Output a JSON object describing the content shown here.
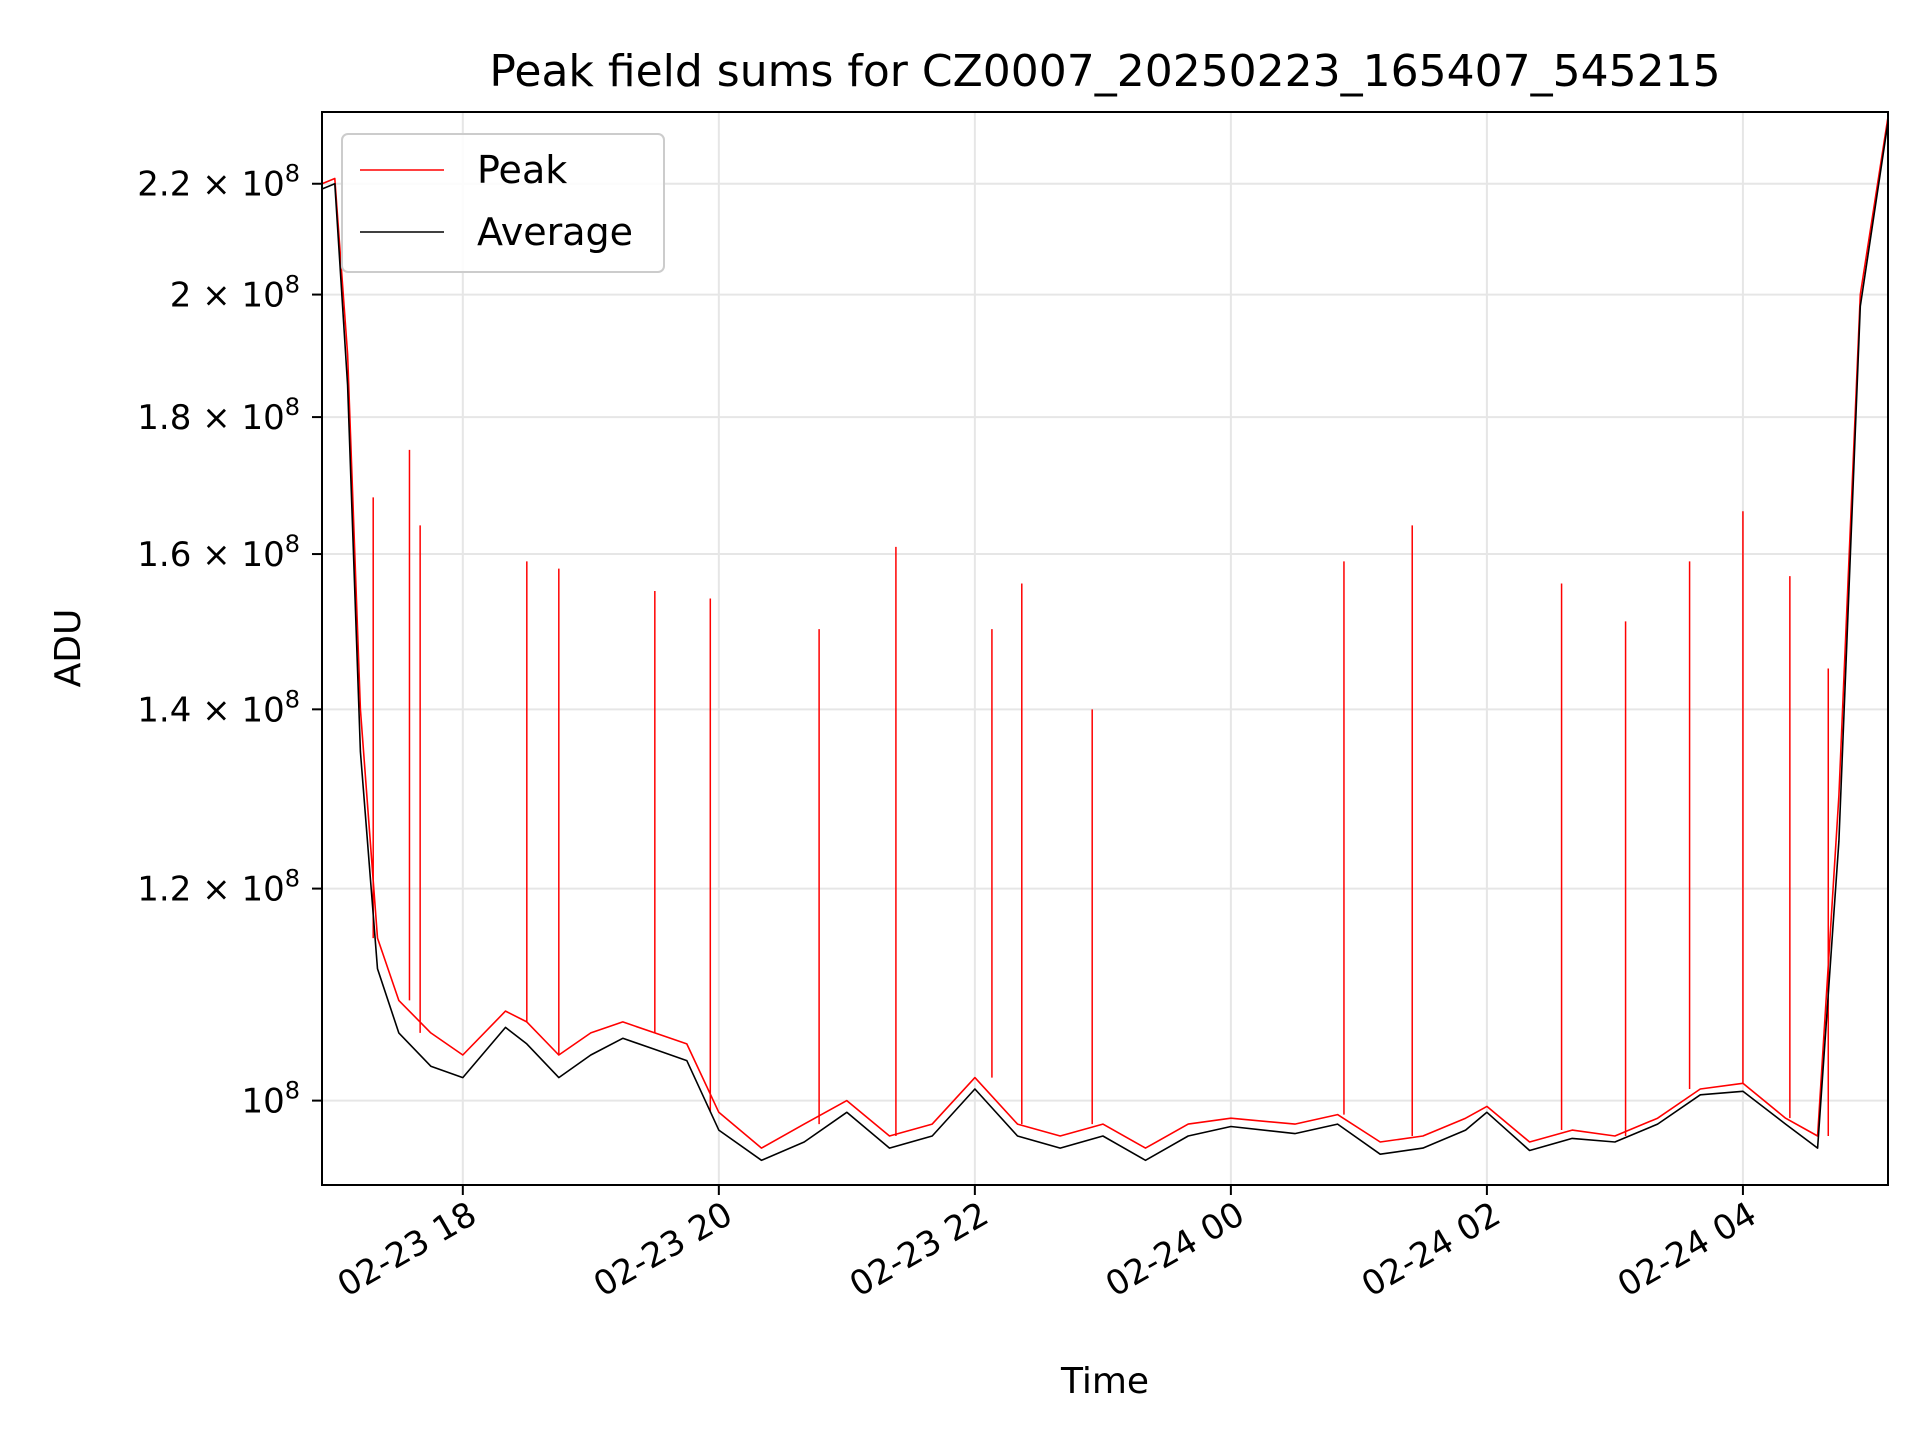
{
  "chart_data": {
    "type": "line",
    "title": "Peak field sums for CZ0007_20250223_165407_545215",
    "xlabel": "Time",
    "ylabel": "ADU",
    "yscale": "log",
    "xlim": [
      "2025-02-23 16:54",
      "2025-02-24 05:08"
    ],
    "ylim": [
      93000000.0,
      234000000.0
    ],
    "grid": true,
    "legend_position": "upper-left",
    "x_ticks": [
      {
        "value": "2025-02-23 18:00",
        "label": "02-23 18"
      },
      {
        "value": "2025-02-23 20:00",
        "label": "02-23 20"
      },
      {
        "value": "2025-02-23 22:00",
        "label": "02-23 22"
      },
      {
        "value": "2025-02-24 00:00",
        "label": "02-24 00"
      },
      {
        "value": "2025-02-24 02:00",
        "label": "02-24 02"
      },
      {
        "value": "2025-02-24 04:00",
        "label": "02-24 04"
      }
    ],
    "y_ticks": [
      {
        "value": 100000000,
        "base": "10",
        "exp": "8"
      },
      {
        "value": 120000000,
        "base": "1.2 × 10",
        "exp": "8"
      },
      {
        "value": 140000000,
        "base": "1.4 × 10",
        "exp": "8"
      },
      {
        "value": 160000000,
        "base": "1.6 × 10",
        "exp": "8"
      },
      {
        "value": 180000000,
        "base": "1.8 × 10",
        "exp": "8"
      },
      {
        "value": 200000000,
        "base": "2 × 10",
        "exp": "8"
      },
      {
        "value": 220000000,
        "base": "2.2 × 10",
        "exp": "8"
      }
    ],
    "series": [
      {
        "name": "Peak",
        "color": "#ff0000",
        "x": [
          "2025-02-23 16:54",
          "2025-02-23 17:00",
          "2025-02-23 17:06",
          "2025-02-23 17:12",
          "2025-02-23 17:20",
          "2025-02-23 17:30",
          "2025-02-23 17:45",
          "2025-02-23 18:00",
          "2025-02-23 18:20",
          "2025-02-23 18:30",
          "2025-02-23 18:45",
          "2025-02-23 19:00",
          "2025-02-23 19:15",
          "2025-02-23 19:30",
          "2025-02-23 19:45",
          "2025-02-23 20:00",
          "2025-02-23 20:20",
          "2025-02-23 20:40",
          "2025-02-23 21:00",
          "2025-02-23 21:20",
          "2025-02-23 21:40",
          "2025-02-23 22:00",
          "2025-02-23 22:20",
          "2025-02-23 22:40",
          "2025-02-23 23:00",
          "2025-02-23 23:20",
          "2025-02-23 23:40",
          "2025-02-24 00:00",
          "2025-02-24 00:30",
          "2025-02-24 00:50",
          "2025-02-24 01:10",
          "2025-02-24 01:30",
          "2025-02-24 01:50",
          "2025-02-24 02:00",
          "2025-02-24 02:20",
          "2025-02-24 02:40",
          "2025-02-24 03:00",
          "2025-02-24 03:20",
          "2025-02-24 03:40",
          "2025-02-24 04:00",
          "2025-02-24 04:20",
          "2025-02-24 04:35",
          "2025-02-24 04:45",
          "2025-02-24 04:55",
          "2025-02-24 05:08"
        ],
        "y": [
          220000000,
          221000000,
          190000000,
          140000000,
          115000000,
          109000000,
          106000000,
          104000000,
          108000000,
          107000000,
          104000000,
          106000000,
          107000000,
          106000000,
          105000000,
          99000000,
          96000000,
          98000000,
          100000000,
          97000000,
          98000000,
          102000000,
          98000000,
          97000000,
          98000000,
          96000000,
          98000000,
          98500000,
          98000000,
          98800000,
          96500000,
          97000000,
          98500000,
          99500000,
          96500000,
          97500000,
          97000000,
          98500000,
          101000000,
          101500000,
          98500000,
          97000000,
          130000000,
          200000000,
          233000000
        ],
        "spikes": [
          {
            "x": "2025-02-23 17:18",
            "y": 168000000
          },
          {
            "x": "2025-02-23 17:35",
            "y": 175000000
          },
          {
            "x": "2025-02-23 17:40",
            "y": 164000000
          },
          {
            "x": "2025-02-23 18:30",
            "y": 159000000
          },
          {
            "x": "2025-02-23 18:45",
            "y": 158000000
          },
          {
            "x": "2025-02-23 19:30",
            "y": 155000000
          },
          {
            "x": "2025-02-23 19:56",
            "y": 154000000
          },
          {
            "x": "2025-02-23 20:47",
            "y": 150000000
          },
          {
            "x": "2025-02-23 21:23",
            "y": 161000000
          },
          {
            "x": "2025-02-23 22:08",
            "y": 150000000
          },
          {
            "x": "2025-02-23 22:22",
            "y": 156000000
          },
          {
            "x": "2025-02-23 22:55",
            "y": 140000000
          },
          {
            "x": "2025-02-24 00:53",
            "y": 159000000
          },
          {
            "x": "2025-02-24 01:25",
            "y": 164000000
          },
          {
            "x": "2025-02-24 02:35",
            "y": 156000000
          },
          {
            "x": "2025-02-24 03:05",
            "y": 151000000
          },
          {
            "x": "2025-02-24 03:35",
            "y": 159000000
          },
          {
            "x": "2025-02-24 04:00",
            "y": 166000000
          },
          {
            "x": "2025-02-24 04:22",
            "y": 157000000
          },
          {
            "x": "2025-02-24 04:40",
            "y": 145000000
          }
        ]
      },
      {
        "name": "Average",
        "color": "#000000",
        "x": [
          "2025-02-23 16:54",
          "2025-02-23 17:00",
          "2025-02-23 17:06",
          "2025-02-23 17:12",
          "2025-02-23 17:20",
          "2025-02-23 17:30",
          "2025-02-23 17:45",
          "2025-02-23 18:00",
          "2025-02-23 18:20",
          "2025-02-23 18:30",
          "2025-02-23 18:45",
          "2025-02-23 19:00",
          "2025-02-23 19:15",
          "2025-02-23 19:30",
          "2025-02-23 19:45",
          "2025-02-23 20:00",
          "2025-02-23 20:20",
          "2025-02-23 20:40",
          "2025-02-23 21:00",
          "2025-02-23 21:20",
          "2025-02-23 21:40",
          "2025-02-23 22:00",
          "2025-02-23 22:20",
          "2025-02-23 22:40",
          "2025-02-23 23:00",
          "2025-02-23 23:20",
          "2025-02-23 23:40",
          "2025-02-24 00:00",
          "2025-02-24 00:30",
          "2025-02-24 00:50",
          "2025-02-24 01:10",
          "2025-02-24 01:30",
          "2025-02-24 01:50",
          "2025-02-24 02:00",
          "2025-02-24 02:20",
          "2025-02-24 02:40",
          "2025-02-24 03:00",
          "2025-02-24 03:20",
          "2025-02-24 03:40",
          "2025-02-24 04:00",
          "2025-02-24 04:20",
          "2025-02-24 04:35",
          "2025-02-24 04:45",
          "2025-02-24 04:55",
          "2025-02-24 05:08"
        ],
        "y": [
          219000000,
          220000000,
          185000000,
          135000000,
          112000000,
          106000000,
          103000000,
          102000000,
          106500000,
          105000000,
          102000000,
          104000000,
          105500000,
          104500000,
          103500000,
          97500000,
          95000000,
          96500000,
          99000000,
          96000000,
          97000000,
          101000000,
          97000000,
          96000000,
          97000000,
          95000000,
          97000000,
          97800000,
          97200000,
          98000000,
          95500000,
          96000000,
          97500000,
          99000000,
          95800000,
          96800000,
          96500000,
          98000000,
          100500000,
          100800000,
          98000000,
          96000000,
          125000000,
          198000000,
          232000000
        ]
      }
    ]
  }
}
